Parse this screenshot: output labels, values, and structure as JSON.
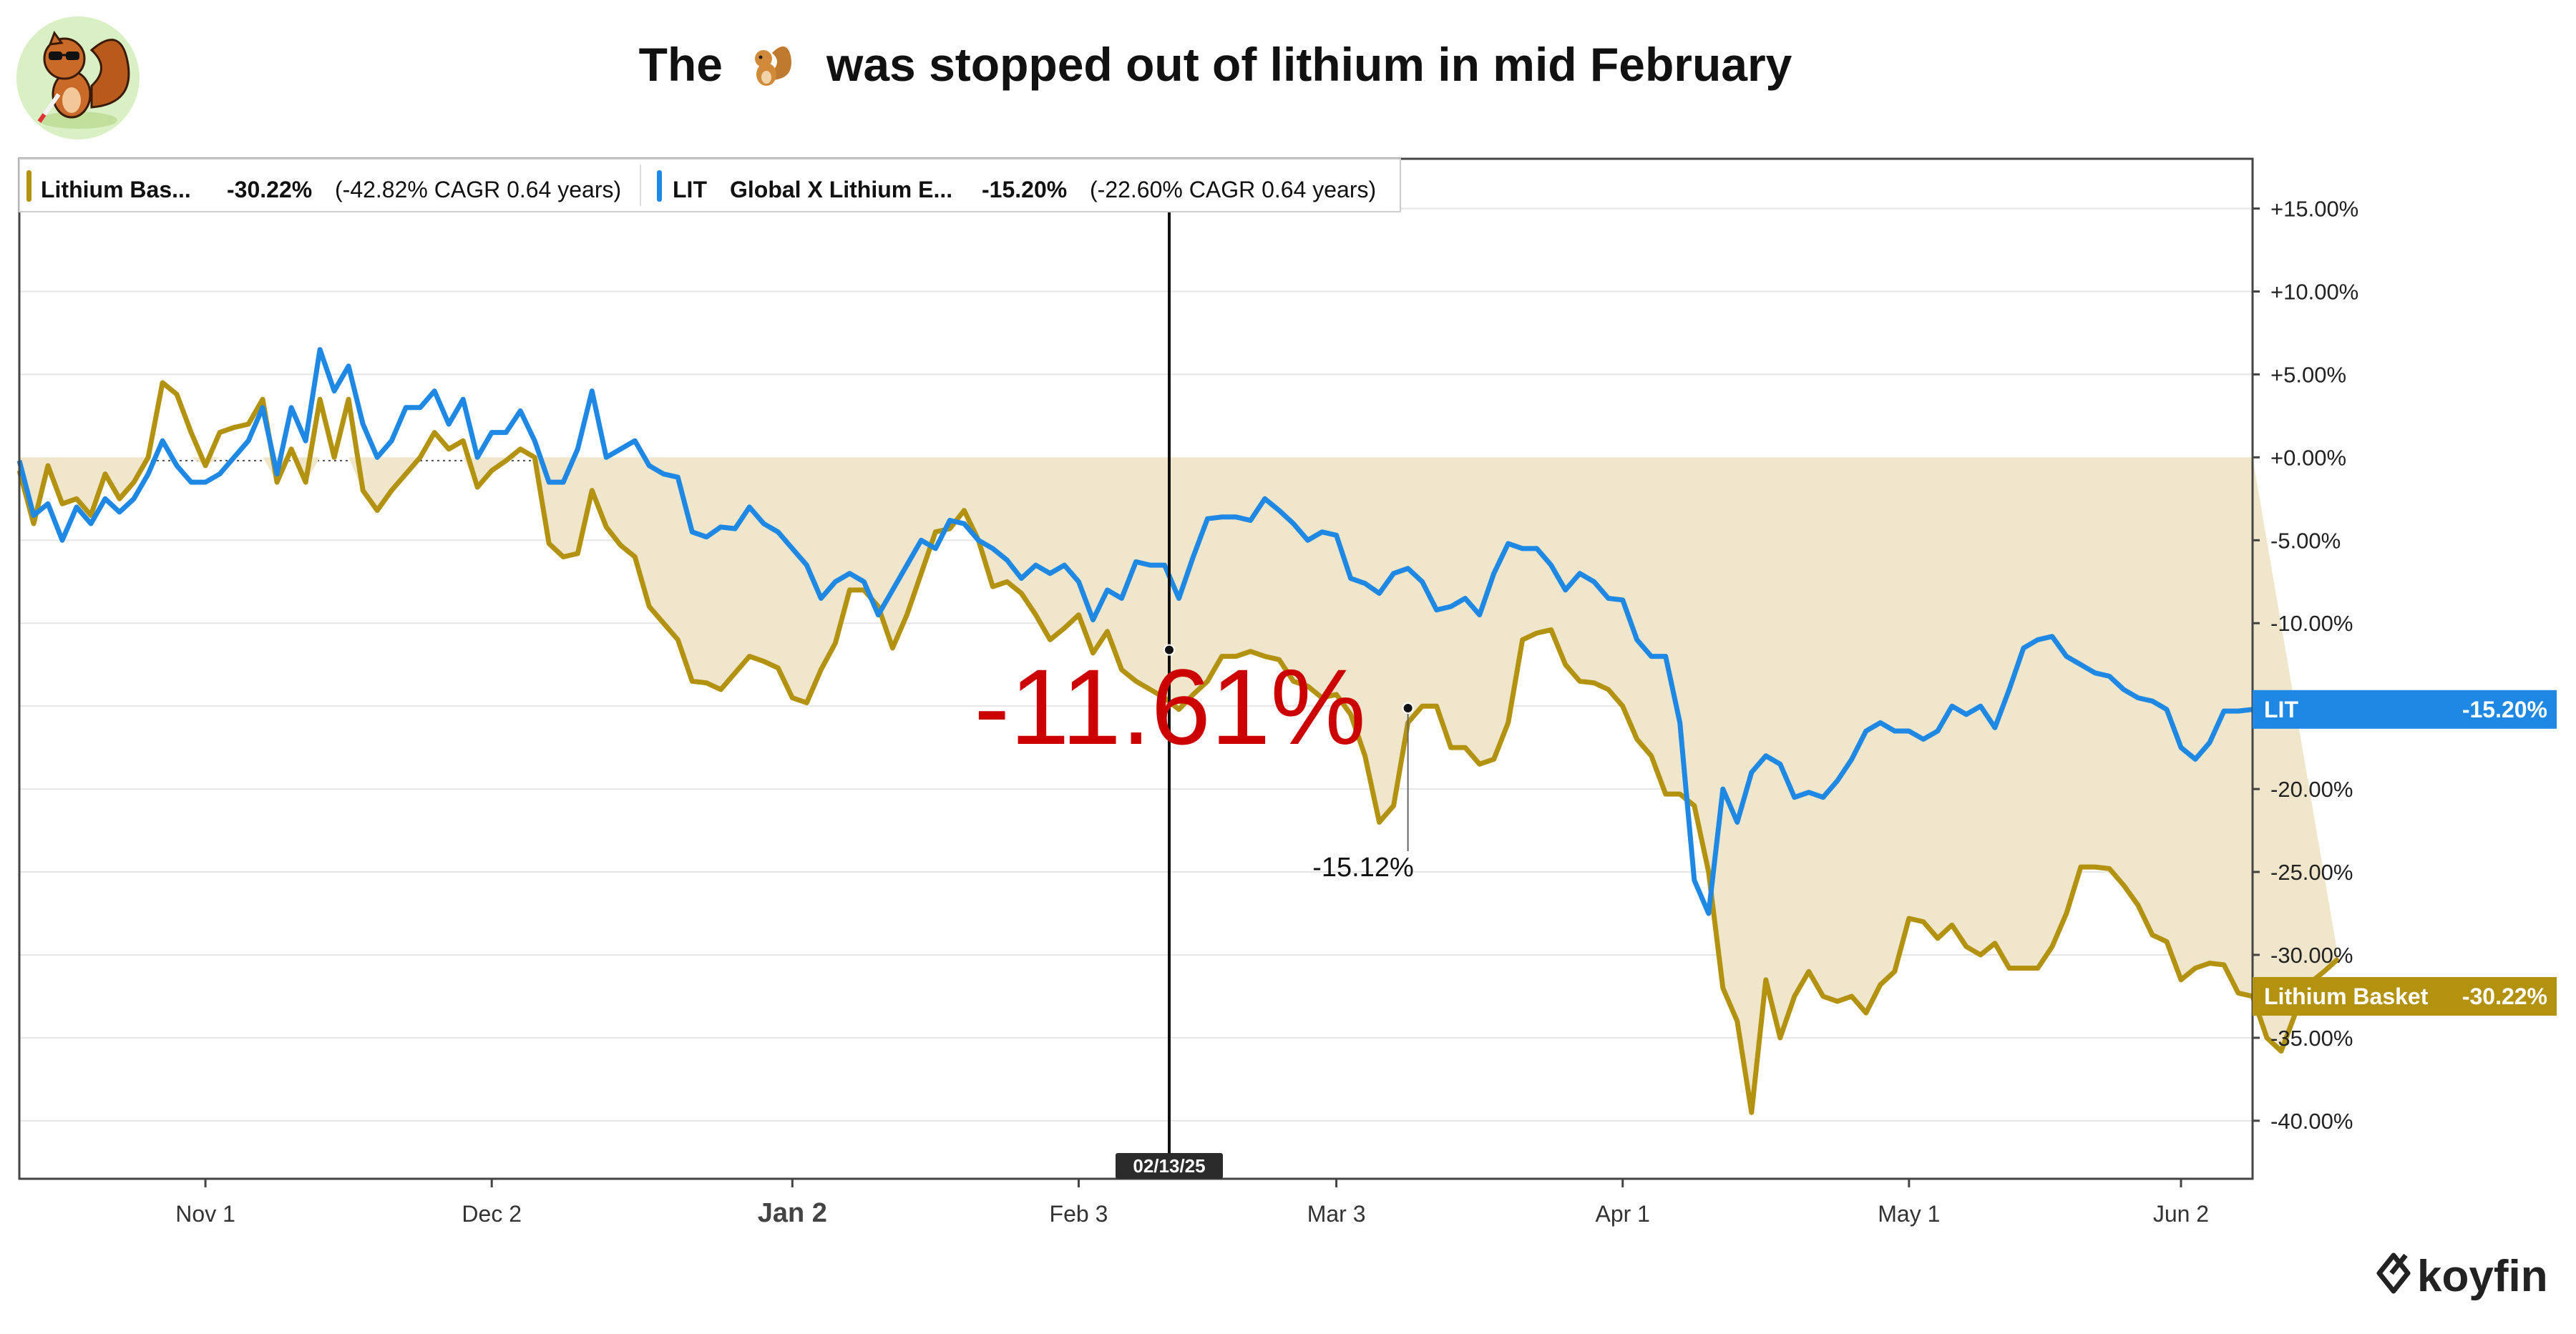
{
  "title": {
    "prefix": "The",
    "icon": "squirrel-emoji",
    "suffix": "was stopped out of lithium in mid February"
  },
  "brand": {
    "logo": "koyfin-logo",
    "name": "koyfin"
  },
  "avatar": {
    "icon": "squirrel-with-sunglasses-avatar"
  },
  "colors": {
    "lit": "#1f88e5",
    "basket": "#b3920f",
    "fill": "#efe6cb",
    "annotation": "#cc0000",
    "grid": "#e5e5e5",
    "axis": "#222222"
  },
  "legend": [
    {
      "symbol": "",
      "name": "Lithium Bas...",
      "value": "-30.22%",
      "cagr": "(-42.82% CAGR 0.64 years)"
    },
    {
      "symbol": "LIT",
      "name": "Global X Lithium E...",
      "value": "-15.20%",
      "cagr": "(-22.60% CAGR 0.64 years)"
    }
  ],
  "annotations": {
    "big_label": "-11.61%",
    "small_label": "-15.12%",
    "vline_date": "02/13/25"
  },
  "end_tags": [
    {
      "name": "LIT",
      "value": "-15.20%"
    },
    {
      "name": "Lithium Basket",
      "value": "-30.22%"
    }
  ],
  "chart_data": {
    "type": "line",
    "x_tick_labels": [
      "Nov 1",
      "Dec 2",
      "Jan 2",
      "Feb 3",
      "Mar 3",
      "Apr 1",
      "May 1",
      "Jun 2"
    ],
    "x_tick_index": [
      13,
      33,
      54,
      74,
      92,
      112,
      132,
      151
    ],
    "y_tick_labels": [
      "+15.00%",
      "+10.00%",
      "+5.00%",
      "+0.00%",
      "-5.00%",
      "-10.00%",
      "-15.00%",
      "-20.00%",
      "-25.00%",
      "-30.00%",
      "-35.00%",
      "-40.00%"
    ],
    "y_tick_values": [
      15,
      10,
      5,
      0,
      -5,
      -10,
      -15,
      -20,
      -25,
      -30,
      -35,
      -40
    ],
    "ylim": [
      -43.5,
      18
    ],
    "grid": true,
    "fill_between_series": true,
    "zero_line": "dotted",
    "series": [
      {
        "name": "LIT",
        "values": [
          -0.2,
          -3.5,
          -2.8,
          -5,
          -3,
          -4,
          -2.5,
          -3.3,
          -2.5,
          -1,
          1,
          -0.5,
          -1.5,
          -1.5,
          -1,
          0,
          1,
          3,
          -1,
          3,
          1,
          6.5,
          4,
          5.5,
          2,
          0,
          1,
          3,
          3,
          4,
          2,
          3.5,
          0,
          1.5,
          1.5,
          2.8,
          1,
          -1.5,
          -1.5,
          0.5,
          4,
          0,
          0.5,
          1,
          -0.5,
          -1,
          -1.2,
          -4.5,
          -4.8,
          -4.2,
          -4.3,
          -3,
          -4,
          -4.5,
          -5.5,
          -6.5,
          -8.5,
          -7.5,
          -7,
          -7.5,
          -9.5,
          -8,
          -6.5,
          -5,
          -5.5,
          -3.8,
          -4,
          -5,
          -5.5,
          -6.2,
          -7.3,
          -6.5,
          -7,
          -6.5,
          -7.5,
          -9.8,
          -8,
          -8.5,
          -6.3,
          -6.5,
          -6.5,
          -8.5,
          -6,
          -3.7,
          -3.6,
          -3.6,
          -3.8,
          -2.5,
          -3.2,
          -4,
          -5,
          -4.5,
          -4.7,
          -7.3,
          -7.6,
          -8.2,
          -7,
          -6.7,
          -7.5,
          -9.2,
          -9,
          -8.5,
          -9.5,
          -7,
          -5.2,
          -5.5,
          -5.5,
          -6.5,
          -8,
          -7,
          -7.5,
          -8.5,
          -8.6,
          -11,
          -12,
          -12,
          -16,
          -25.5,
          -27.5,
          -20,
          -22,
          -19,
          -18,
          -18.5,
          -20.5,
          -20.2,
          -20.5,
          -19.5,
          -18.2,
          -16.5,
          -16,
          -16.5,
          -16.5,
          -17,
          -16.5,
          -15,
          -15.5,
          -15,
          -16.3,
          -14,
          -11.5,
          -11,
          -10.8,
          -12,
          -12.5,
          -13,
          -13.2,
          -14,
          -14.5,
          -14.7,
          -15.2,
          -17.5,
          -18.2,
          -17.2,
          -15.3,
          -15.3,
          -15.2
        ]
      },
      {
        "name": "Lithium Basket",
        "values": [
          -0.8,
          -4,
          -0.5,
          -2.8,
          -2.5,
          -3.5,
          -1,
          -2.5,
          -1.5,
          0,
          4.5,
          3.8,
          1.5,
          -0.5,
          1.5,
          1.8,
          2,
          3.5,
          -1.5,
          0.5,
          -1.5,
          3.5,
          0,
          3.5,
          -2,
          -3.2,
          -2,
          -1,
          0,
          1.5,
          0.5,
          1,
          -1.8,
          -0.8,
          -0.2,
          0.5,
          0,
          -5.2,
          -6,
          -5.8,
          -2,
          -4.2,
          -5.3,
          -6,
          -9,
          -10,
          -11,
          -13.5,
          -13.6,
          -14,
          -13,
          -12,
          -12.3,
          -12.7,
          -14.5,
          -14.8,
          -12.8,
          -11.2,
          -8,
          -8,
          -9,
          -11.5,
          -9.5,
          -7,
          -4.5,
          -4.3,
          -3.2,
          -5,
          -7.8,
          -7.5,
          -8.2,
          -9.5,
          -11,
          -10.3,
          -9.5,
          -11.8,
          -10.5,
          -12.8,
          -13.5,
          -14,
          -14.5,
          -15.2,
          -14.3,
          -13.5,
          -12,
          -12,
          -11.7,
          -12,
          -12.2,
          -13.5,
          -13.8,
          -14.5,
          -14.3,
          -15.5,
          -18,
          -22,
          -21,
          -16,
          -15,
          -15,
          -17.5,
          -17.5,
          -18.5,
          -18.2,
          -16,
          -11,
          -10.6,
          -10.4,
          -12.5,
          -13.5,
          -13.6,
          -14,
          -15,
          -17,
          -18,
          -20.3,
          -20.3,
          -21,
          -25,
          -32,
          -34,
          -39.5,
          -31.5,
          -35,
          -32.5,
          -31,
          -32.5,
          -32.8,
          -32.5,
          -33.5,
          -31.8,
          -31,
          -27.8,
          -28,
          -29,
          -28.2,
          -29.5,
          -30,
          -29.3,
          -30.8,
          -30.8,
          -30.8,
          -29.5,
          -27.5,
          -24.7,
          -24.7,
          -24.8,
          -25.8,
          -27,
          -28.8,
          -29.2,
          -31.5,
          -30.8,
          -30.5,
          -30.6,
          -32.3,
          -32.5,
          -35,
          -35.8,
          -33.5,
          -31.7,
          -31,
          -30.22
        ]
      }
    ]
  }
}
